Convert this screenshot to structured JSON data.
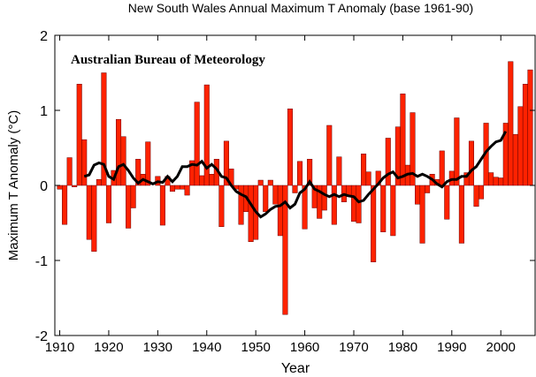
{
  "chart_data": {
    "type": "bar",
    "title": "New South Wales Annual Maximum T Anomaly (base 1961-90)",
    "annotation": "Australian Bureau of Meteorology",
    "x_label": "Year",
    "y_label": "Maximum T Anomaly (°C)",
    "x": [
      1910,
      1911,
      1912,
      1913,
      1914,
      1915,
      1916,
      1917,
      1918,
      1919,
      1920,
      1921,
      1922,
      1923,
      1924,
      1925,
      1926,
      1927,
      1928,
      1929,
      1930,
      1931,
      1932,
      1933,
      1934,
      1935,
      1936,
      1937,
      1938,
      1939,
      1940,
      1941,
      1942,
      1943,
      1944,
      1945,
      1946,
      1947,
      1948,
      1949,
      1950,
      1951,
      1952,
      1953,
      1954,
      1955,
      1956,
      1957,
      1958,
      1959,
      1960,
      1961,
      1962,
      1963,
      1964,
      1965,
      1966,
      1967,
      1968,
      1969,
      1970,
      1971,
      1972,
      1973,
      1974,
      1975,
      1976,
      1977,
      1978,
      1979,
      1980,
      1981,
      1982,
      1983,
      1984,
      1985,
      1986,
      1987,
      1988,
      1989,
      1990,
      1991,
      1992,
      1993,
      1994,
      1995,
      1996,
      1997,
      1998,
      1999,
      2000,
      2001,
      2002,
      2003,
      2004,
      2005,
      2006
    ],
    "series": [
      {
        "type": "bar",
        "color": "#ff2200",
        "values": [
          -0.05,
          -0.52,
          0.37,
          -0.02,
          1.35,
          0.61,
          -0.72,
          -0.88,
          0.08,
          1.5,
          -0.5,
          0.2,
          0.88,
          0.65,
          -0.57,
          -0.3,
          0.35,
          0.15,
          0.58,
          0.0,
          0.12,
          -0.53,
          0.12,
          -0.08,
          -0.05,
          -0.05,
          -0.13,
          0.33,
          1.11,
          0.13,
          1.34,
          0.15,
          0.35,
          -0.55,
          0.59,
          0.22,
          -0.05,
          -0.52,
          -0.35,
          -0.75,
          -0.72,
          0.07,
          -0.35,
          0.07,
          -0.25,
          -0.67,
          -1.72,
          1.02,
          -0.1,
          0.32,
          -0.58,
          0.35,
          -0.3,
          -0.44,
          -0.33,
          0.8,
          -0.52,
          0.38,
          -0.22,
          -0.15,
          -0.48,
          -0.5,
          0.42,
          0.18,
          -1.02,
          0.19,
          -0.62,
          0.63,
          -0.67,
          0.78,
          1.22,
          0.27,
          0.97,
          -0.25,
          -0.77,
          -0.1,
          0.15,
          0.08,
          0.46,
          -0.45,
          0.19,
          0.9,
          -0.77,
          0.17,
          0.59,
          -0.28,
          -0.18,
          0.83,
          0.17,
          0.11,
          0.1,
          0.83,
          1.65,
          0.68,
          1.05,
          1.35,
          1.54
        ]
      },
      {
        "type": "line",
        "color": "#000000",
        "values": [
          null,
          null,
          null,
          null,
          null,
          0.12,
          0.14,
          0.27,
          0.3,
          0.28,
          0.12,
          0.08,
          0.25,
          0.28,
          0.2,
          0.1,
          0.03,
          0.08,
          0.05,
          0.02,
          0.05,
          0.04,
          0.12,
          0.05,
          0.12,
          0.25,
          0.25,
          0.28,
          0.27,
          0.32,
          0.23,
          0.28,
          0.22,
          0.12,
          0.1,
          0.0,
          -0.08,
          -0.12,
          -0.15,
          -0.25,
          -0.35,
          -0.42,
          -0.38,
          -0.32,
          -0.28,
          -0.27,
          -0.22,
          -0.3,
          -0.25,
          -0.1,
          -0.05,
          0.05,
          -0.05,
          -0.08,
          -0.12,
          -0.15,
          -0.12,
          -0.15,
          -0.12,
          -0.14,
          -0.15,
          -0.22,
          -0.2,
          -0.12,
          -0.05,
          0.02,
          0.1,
          0.15,
          0.18,
          0.1,
          0.12,
          0.15,
          0.16,
          0.12,
          0.15,
          0.12,
          0.08,
          0.02,
          -0.02,
          0.05,
          0.08,
          0.08,
          0.12,
          0.12,
          0.2,
          0.25,
          0.35,
          0.45,
          0.52,
          0.58,
          0.6,
          0.72,
          null,
          null,
          null,
          null,
          null
        ]
      }
    ],
    "xlim": [
      1909,
      2007
    ],
    "ylim": [
      -2,
      2
    ],
    "xticks": [
      1910,
      1920,
      1930,
      1940,
      1950,
      1960,
      1970,
      1980,
      1990,
      2000
    ],
    "yticks": [
      -2,
      -1,
      0,
      1,
      2
    ]
  }
}
